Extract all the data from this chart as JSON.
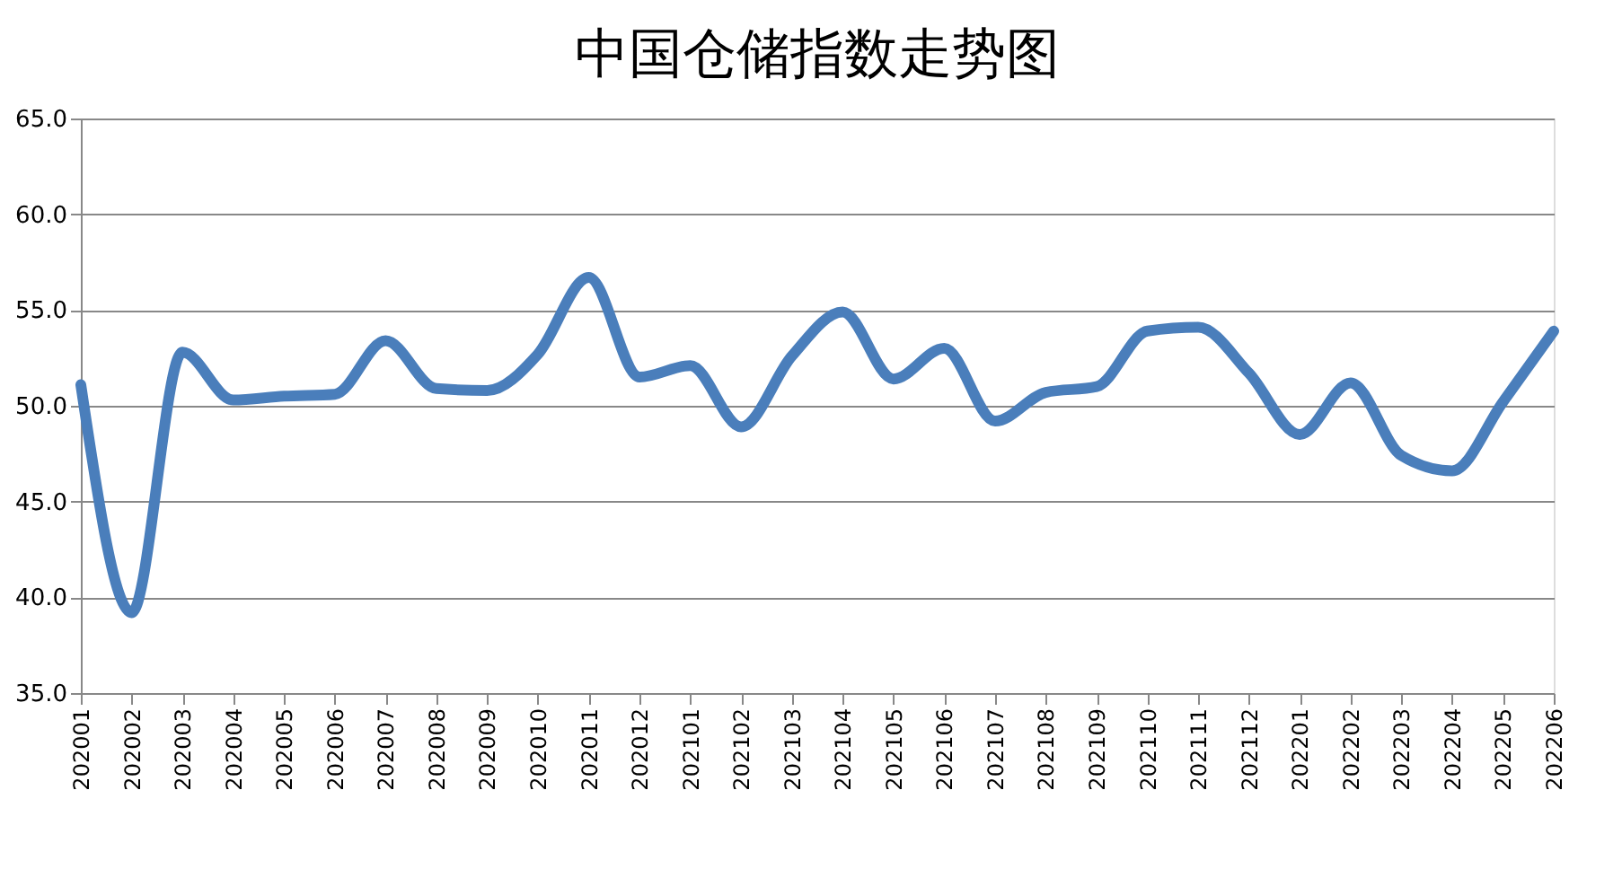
{
  "chart_data": {
    "type": "line",
    "title": "中国仓储指数走势图",
    "categories": [
      "202001",
      "202002",
      "202003",
      "202004",
      "202005",
      "202006",
      "202007",
      "202008",
      "202009",
      "202010",
      "202011",
      "202012",
      "202101",
      "202102",
      "202103",
      "202104",
      "202105",
      "202106",
      "202107",
      "202108",
      "202109",
      "202110",
      "202111",
      "202112",
      "202201",
      "202202",
      "202203",
      "202204",
      "202205",
      "202206"
    ],
    "series": [
      {
        "color": "#4a7ebb",
        "values": [
          51.1,
          39.2,
          52.8,
          50.3,
          50.5,
          50.6,
          53.4,
          50.9,
          50.8,
          52.7,
          56.7,
          51.5,
          52.1,
          48.9,
          52.6,
          54.9,
          51.4,
          53.0,
          49.2,
          50.7,
          51.0,
          53.9,
          54.1,
          51.7,
          48.5,
          51.2,
          47.4,
          46.6,
          50.2,
          53.9
        ]
      }
    ],
    "ylim": [
      35,
      65
    ],
    "yticks": [
      {
        "value": 35,
        "label": "35.0"
      },
      {
        "value": 40,
        "label": "40.0"
      },
      {
        "value": 45,
        "label": "45.0"
      },
      {
        "value": 50,
        "label": "50.0"
      },
      {
        "value": 55,
        "label": "55.0"
      },
      {
        "value": 60,
        "label": "60.0"
      },
      {
        "value": 65,
        "label": "65.0"
      }
    ],
    "grid": "y",
    "legend": false,
    "marker": "none",
    "line_style": "solid"
  }
}
